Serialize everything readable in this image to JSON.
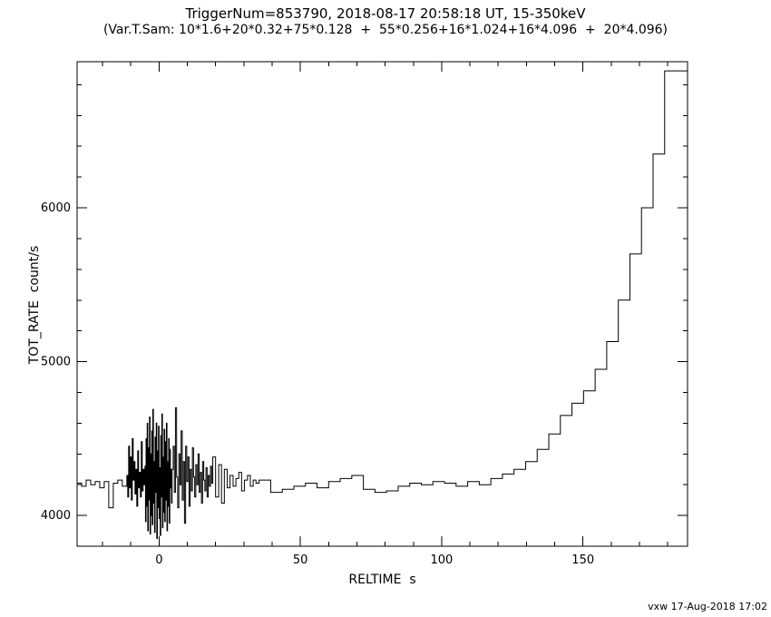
{
  "chart_data": {
    "type": "step-line",
    "title": "TriggerNum=853790, 2018-08-17 20:58:18 UT, 15-350keV",
    "subtitle": "(Var.T.Sam: 10*1.6+20*0.32+75*0.128  +  55*0.256+16*1.024+16*4.096  +  20*4.096)",
    "xlabel": "RELTIME  s",
    "ylabel": "TOT_RATE  count/s",
    "credit": "vxw 17-Aug-2018 17:02",
    "line_color": "#000000",
    "background": "#ffffff",
    "xlim": [
      -29,
      187
    ],
    "ylim": [
      3800,
      6950
    ],
    "xticks": [
      0,
      50,
      100,
      150
    ],
    "yticks": [
      4000,
      5000,
      6000
    ],
    "x_minor_step": 10,
    "y_minor_step": 200,
    "x": [
      -29.0,
      -27.4,
      -25.8,
      -24.2,
      -22.6,
      -21.0,
      -19.4,
      -17.8,
      -16.2,
      -14.6,
      -13.0,
      -11.4,
      -11.08,
      -10.76,
      -10.44,
      -10.12,
      -9.8,
      -9.48,
      -9.16,
      -8.84,
      -8.52,
      -8.2,
      -7.88,
      -7.56,
      -7.24,
      -6.92,
      -6.6,
      -6.28,
      -5.96,
      -5.64,
      -5.32,
      -5.0,
      -4.8,
      -4.6,
      -4.4,
      -4.2,
      -4.0,
      -3.8,
      -3.6,
      -3.4,
      -3.2,
      -3.0,
      -2.8,
      -2.6,
      -2.4,
      -2.2,
      -2.0,
      -1.8,
      -1.6,
      -1.4,
      -1.2,
      -1.0,
      -0.8,
      -0.6,
      -0.4,
      -0.2,
      0.0,
      0.2,
      0.4,
      0.6,
      0.8,
      1.0,
      1.2,
      1.4,
      1.6,
      1.8,
      2.0,
      2.2,
      2.4,
      2.6,
      2.8,
      3.0,
      3.2,
      3.4,
      3.6,
      3.8,
      4.0,
      4.2,
      4.4,
      4.6,
      5.0,
      5.4,
      5.8,
      6.2,
      6.6,
      7.0,
      7.4,
      7.8,
      8.2,
      8.6,
      9.0,
      9.4,
      9.8,
      10.2,
      10.6,
      11.0,
      11.4,
      11.8,
      12.2,
      12.6,
      13.0,
      13.4,
      13.8,
      14.2,
      14.6,
      15.0,
      15.4,
      15.8,
      16.2,
      16.6,
      17.0,
      17.4,
      17.8,
      18.2,
      18.6,
      19.0,
      20.0,
      21.1,
      22.1,
      23.1,
      24.1,
      25.1,
      26.2,
      27.2,
      28.2,
      29.2,
      30.2,
      31.3,
      32.3,
      33.3,
      34.3,
      35.4,
      39.5,
      43.6,
      47.7,
      51.8,
      55.9,
      60.0,
      64.1,
      68.2,
      72.3,
      76.4,
      80.5,
      84.6,
      88.7,
      92.8,
      96.9,
      101.0,
      105.1,
      109.2,
      113.3,
      117.4,
      121.5,
      125.6,
      129.7,
      133.8,
      137.9,
      142.0,
      146.1,
      150.2,
      154.3,
      158.4,
      162.5,
      166.6,
      170.7,
      174.8,
      178.9
    ],
    "y": [
      4210,
      4190,
      4230,
      4200,
      4220,
      4180,
      4220,
      4050,
      4210,
      4230,
      4190,
      4260,
      4120,
      4450,
      4180,
      4380,
      4100,
      4500,
      4230,
      4350,
      4140,
      4300,
      4060,
      4420,
      4180,
      4280,
      4120,
      4480,
      4160,
      4300,
      4200,
      4320,
      3960,
      4500,
      4060,
      4600,
      3900,
      4440,
      4100,
      4640,
      3880,
      4400,
      4000,
      4550,
      3940,
      4690,
      4080,
      4350,
      3890,
      4510,
      4150,
      4600,
      3850,
      4420,
      4050,
      4580,
      3980,
      4310,
      3870,
      4520,
      4120,
      4660,
      3920,
      4380,
      4020,
      4560,
      3960,
      4480,
      4100,
      4600,
      3900,
      4350,
      4060,
      4500,
      3950,
      4430,
      4180,
      4300,
      4080,
      4300,
      4450,
      4150,
      4700,
      4250,
      4050,
      4400,
      4200,
      4550,
      4100,
      4350,
      3950,
      4450,
      4220,
      4380,
      4060,
      4300,
      4160,
      4440,
      4250,
      4120,
      4330,
      4200,
      4400,
      4150,
      4280,
      4080,
      4350,
      4230,
      4160,
      4310,
      4120,
      4260,
      4190,
      4320,
      4210,
      4380,
      4120,
      4330,
      4080,
      4300,
      4180,
      4260,
      4190,
      4240,
      4280,
      4160,
      4230,
      4260,
      4190,
      4230,
      4210,
      4230,
      4150,
      4170,
      4190,
      4210,
      4180,
      4220,
      4240,
      4260,
      4170,
      4150,
      4160,
      4190,
      4210,
      4200,
      4220,
      4210,
      4190,
      4220,
      4200,
      4240,
      4270,
      4300,
      4350,
      4430,
      4530,
      4650,
      4730,
      4810,
      4950,
      5130,
      5400,
      5700,
      6000,
      6350,
      6890
    ]
  }
}
